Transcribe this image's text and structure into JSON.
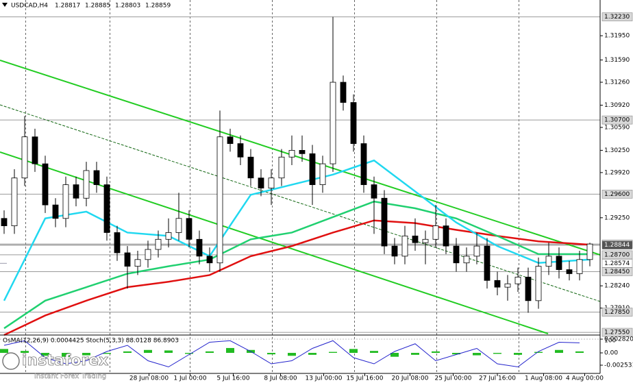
{
  "chart_data": {
    "type": "candlestick",
    "title": "USDCAD,H4",
    "header_values": [
      1.28817,
      1.28885,
      1.28803,
      1.28859
    ],
    "ohlc": [
      [
        1.2924,
        1.2936,
        1.2901,
        1.2913
      ],
      [
        1.2913,
        1.2997,
        1.2901,
        1.2984
      ],
      [
        1.2984,
        1.3076,
        1.2972,
        1.3045
      ],
      [
        1.3045,
        1.3057,
        1.2993,
        1.3005
      ],
      [
        1.3005,
        1.3017,
        1.2932,
        1.2944
      ],
      [
        1.2944,
        1.2954,
        1.2911,
        1.2924
      ],
      [
        1.2924,
        1.2986,
        1.2911,
        1.2974
      ],
      [
        1.2974,
        1.2986,
        1.2942,
        1.2954
      ],
      [
        1.2954,
        1.3008,
        1.2942,
        1.2995
      ],
      [
        1.2995,
        1.3008,
        1.2962,
        1.2974
      ],
      [
        1.2974,
        1.2986,
        1.2891,
        1.2903
      ],
      [
        1.2903,
        1.2913,
        1.2861,
        1.2873
      ],
      [
        1.2873,
        1.2883,
        1.282,
        1.2853
      ],
      [
        1.2853,
        1.2876,
        1.284,
        1.2863
      ],
      [
        1.2863,
        1.2891,
        1.2851,
        1.2878
      ],
      [
        1.2878,
        1.2906,
        1.2866,
        1.2893
      ],
      [
        1.2893,
        1.2924,
        1.2881,
        1.2903
      ],
      [
        1.2903,
        1.2962,
        1.2891,
        1.2924
      ],
      [
        1.2924,
        1.2936,
        1.2881,
        1.2893
      ],
      [
        1.2893,
        1.2906,
        1.2856,
        1.2868
      ],
      [
        1.2868,
        1.2881,
        1.2845,
        1.2858
      ],
      [
        1.2858,
        1.3084,
        1.2845,
        1.3045
      ],
      [
        1.3045,
        1.3057,
        1.3023,
        1.3035
      ],
      [
        1.3035,
        1.3047,
        1.3003,
        1.3015
      ],
      [
        1.3015,
        1.3027,
        1.2972,
        1.2984
      ],
      [
        1.2984,
        1.2997,
        1.2957,
        1.2969
      ],
      [
        1.2969,
        1.2997,
        1.2944,
        1.2984
      ],
      [
        1.2984,
        1.3027,
        1.2972,
        1.3015
      ],
      [
        1.3015,
        1.3047,
        1.3003,
        1.3025
      ],
      [
        1.3025,
        1.3047,
        1.3008,
        1.302
      ],
      [
        1.302,
        1.3033,
        1.2944,
        1.2974
      ],
      [
        1.2974,
        1.3017,
        1.2962,
        1.3005
      ],
      [
        1.3005,
        1.3223,
        1.2993,
        1.3126
      ],
      [
        1.3126,
        1.3136,
        1.3084,
        1.3096
      ],
      [
        1.3096,
        1.3108,
        1.3023,
        1.3035
      ],
      [
        1.3035,
        1.3047,
        1.2962,
        1.2974
      ],
      [
        1.2974,
        1.2986,
        1.2901,
        1.2954
      ],
      [
        1.2954,
        1.2966,
        1.2871,
        1.2883
      ],
      [
        1.2883,
        1.2895,
        1.2856,
        1.2868
      ],
      [
        1.2868,
        1.2913,
        1.2856,
        1.2898
      ],
      [
        1.2898,
        1.2924,
        1.2876,
        1.2888
      ],
      [
        1.2888,
        1.2906,
        1.2856,
        1.2893
      ],
      [
        1.2893,
        1.2944,
        1.2881,
        1.2913
      ],
      [
        1.2913,
        1.2924,
        1.2871,
        1.2883
      ],
      [
        1.2883,
        1.2895,
        1.2845,
        1.2858
      ],
      [
        1.2858,
        1.2881,
        1.2845,
        1.2868
      ],
      [
        1.2868,
        1.2903,
        1.2856,
        1.2883
      ],
      [
        1.2883,
        1.2895,
        1.282,
        1.2832
      ],
      [
        1.2832,
        1.2845,
        1.281,
        1.2822
      ],
      [
        1.2822,
        1.284,
        1.2802,
        1.2827
      ],
      [
        1.2827,
        1.2851,
        1.2815,
        1.2837
      ],
      [
        1.2837,
        1.2851,
        1.2784,
        1.2802
      ],
      [
        1.2802,
        1.2866,
        1.279,
        1.2853
      ],
      [
        1.2853,
        1.2888,
        1.284,
        1.2868
      ],
      [
        1.2868,
        1.2881,
        1.2835,
        1.2848
      ],
      [
        1.2848,
        1.2861,
        1.2832,
        1.2842
      ],
      [
        1.2842,
        1.2876,
        1.2832,
        1.2863
      ],
      [
        1.2863,
        1.2888,
        1.2853,
        1.2886
      ]
    ],
    "xlim": [
      -0.4,
      58
    ],
    "ylim": [
      1.2751,
      1.3248
    ],
    "yticks": [
      {
        "value": 1.3195,
        "label": "1.31950"
      },
      {
        "value": 1.3159,
        "label": "1.31590"
      },
      {
        "value": 1.3126,
        "label": "1.31260"
      },
      {
        "value": 1.3092,
        "label": "1.30920"
      },
      {
        "value": 1.3059,
        "label": "1.30590"
      },
      {
        "value": 1.3025,
        "label": "1.30250"
      },
      {
        "value": 1.2992,
        "label": "1.29920"
      },
      {
        "value": 1.2925,
        "label": "1.29250"
      },
      {
        "value": 1.2824,
        "label": "1.28240"
      },
      {
        "value": 1.2791,
        "label": "1.27910"
      }
    ],
    "levels": [
      {
        "value": 1.3223,
        "label": "1.32230"
      },
      {
        "value": 1.307,
        "label": "1.30700"
      },
      {
        "value": 1.296,
        "label": "1.29600"
      },
      {
        "value": 1.2886,
        "label": "1.28860"
      },
      {
        "value": 1.287,
        "label": "1.28700"
      },
      {
        "value": 1.2845,
        "label": "1.28450"
      },
      {
        "value": 1.2785,
        "label": "1.27850"
      },
      {
        "value": 1.2755,
        "label": "1.27550"
      }
    ],
    "current_price": 1.28844,
    "marker_price": 1.28574,
    "xticks": [
      {
        "value": 14.1,
        "label": "28 Jun 08:00"
      },
      {
        "value": 18.1,
        "label": "1 Jul 00:00"
      },
      {
        "value": 22.3,
        "label": "5 Jul 16:00"
      },
      {
        "value": 26.9,
        "label": "8 Jul 08:00"
      },
      {
        "value": 31.1,
        "label": "13 Jul 00:00"
      },
      {
        "value": 35.1,
        "label": "15 Jul 16:00"
      },
      {
        "value": 39.5,
        "label": "20 Jul 08:00"
      },
      {
        "value": 43.7,
        "label": "25 Jul 00:00"
      },
      {
        "value": 48,
        "label": "27 Jul 16:00"
      },
      {
        "value": 52.5,
        "label": "1 Aug 08:00"
      },
      {
        "value": 56.5,
        "label": "4 Aug 00:00"
      }
    ],
    "xgrid": [
      2.1,
      10.3,
      18.1,
      26.1,
      34.1,
      42.1,
      50.1
    ],
    "moving_averages": {
      "x": [
        0,
        4,
        8,
        12,
        16,
        20,
        24,
        28,
        32,
        36,
        40,
        44,
        48,
        52,
        57
      ],
      "series": [
        {
          "color": "#e01010",
          "values": [
            1.2751,
            1.278,
            1.2802,
            1.2822,
            1.283,
            1.284,
            1.2868,
            1.2883,
            1.2903,
            1.2921,
            1.2917,
            1.2907,
            1.2898,
            1.289,
            1.2885
          ]
        },
        {
          "color": "#20d070",
          "values": [
            1.2761,
            1.2802,
            1.2822,
            1.2842,
            1.2853,
            1.2863,
            1.2893,
            1.2903,
            1.2926,
            1.2949,
            1.2939,
            1.2924,
            1.2898,
            1.2871,
            1.2871
          ]
        },
        {
          "color": "#20d8f0",
          "values": [
            1.2802,
            1.2924,
            1.2934,
            1.2903,
            1.2898,
            1.2868,
            1.2959,
            1.2974,
            1.2989,
            1.301,
            1.2964,
            1.2918,
            1.2883,
            1.2858,
            1.2863
          ]
        }
      ]
    },
    "indicator": {
      "title": "OsMA(12,26,9) 0.0004425 Stoch(5,3,3) 88.0128 86.8903",
      "x": [
        0,
        2,
        4,
        6,
        8,
        10,
        12,
        14,
        16,
        18,
        20,
        22,
        24,
        26,
        28,
        30,
        32,
        34,
        36,
        38,
        40,
        42,
        44,
        46,
        48,
        50,
        52,
        54,
        56
      ],
      "osma": [
        0.0008,
        0.0004,
        -0.0006,
        -0.0008,
        -0.0005,
        -0.0002,
        0.0003,
        0.0006,
        0.0005,
        -0.0002,
        0.0003,
        0.001,
        0.0006,
        -0.0003,
        -0.0006,
        -0.0004,
        0.0002,
        0.0008,
        0.0004,
        -0.0008,
        -0.0004,
        0.0003,
        -0.0003,
        -0.0005,
        -0.0002,
        -0.0004,
        0.0002,
        0.0006,
        0.0003
      ],
      "stoch": [
        80,
        95,
        40,
        20,
        30,
        60,
        80,
        30,
        10,
        50,
        90,
        95,
        60,
        20,
        30,
        70,
        95,
        40,
        20,
        60,
        85,
        30,
        50,
        70,
        20,
        10,
        60,
        90,
        88
      ],
      "osma_ylim": [
        -0.0025314,
        0.0028204
      ],
      "osma_ticks": [
        0.0028204,
        {
          "value": 0,
          "label": "0.00"
        },
        -0.0025314
      ],
      "stoch_ylim": [
        0,
        100
      ],
      "stoch_ticks": [
        100
      ]
    },
    "logo": {
      "brand": "instaforex",
      "tagline": "Instant Forex Trading"
    }
  }
}
